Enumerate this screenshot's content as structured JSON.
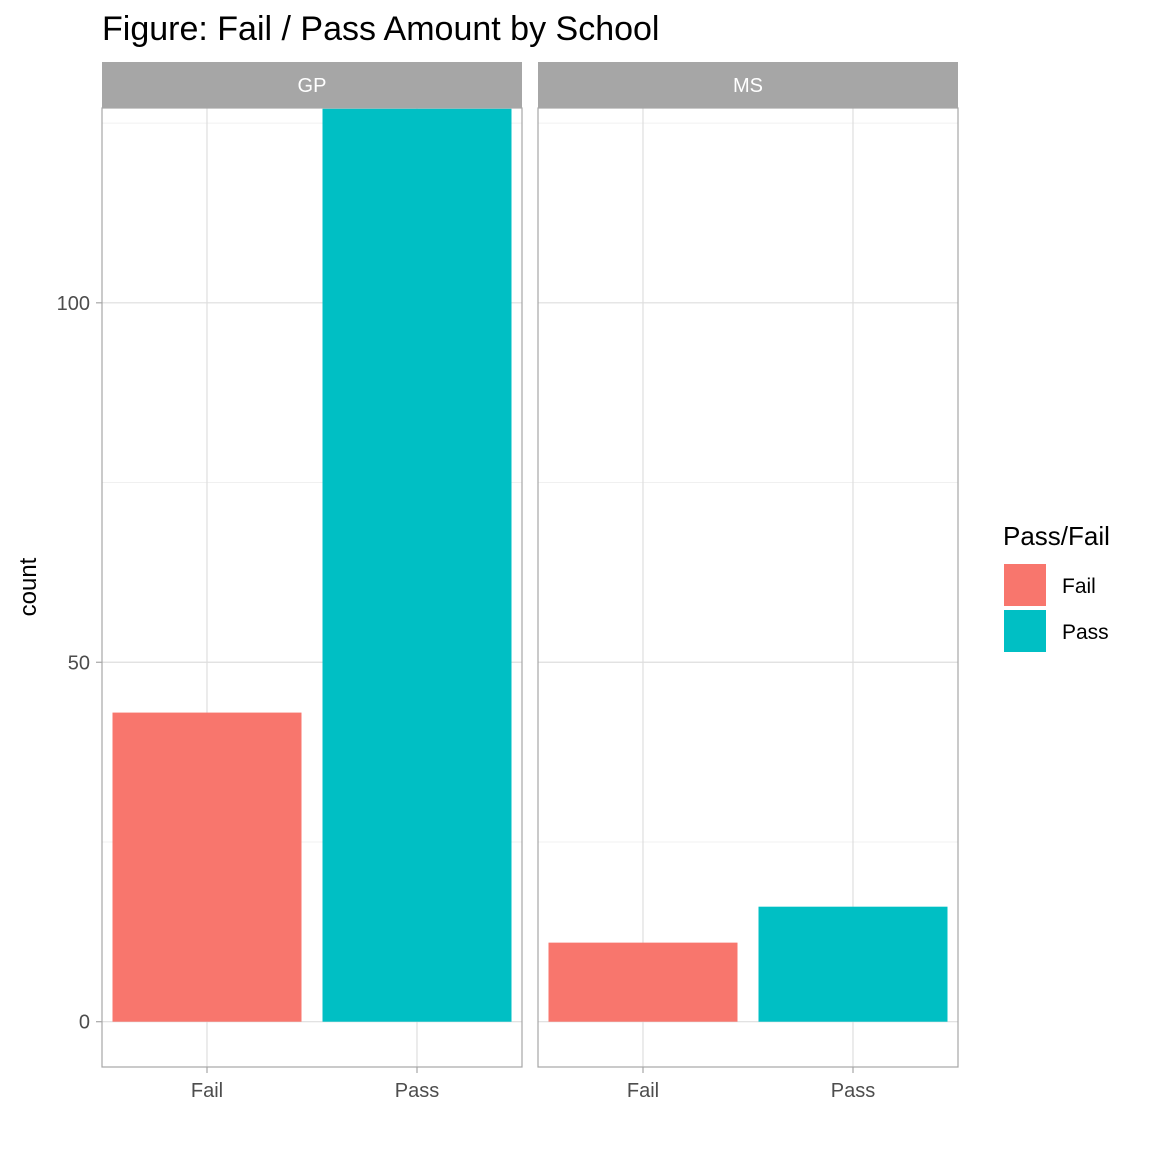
{
  "chart_data": {
    "type": "bar",
    "title": "Figure: Fail / Pass Amount by School",
    "xlabel": "",
    "ylabel": "count",
    "categories": [
      "Fail",
      "Pass"
    ],
    "ylim": [
      -6.3,
      127.1
    ],
    "yticks": [
      0,
      50,
      100
    ],
    "grid": true,
    "panels": [
      {
        "name": "GP",
        "values": [
          43,
          127
        ]
      },
      {
        "name": "MS",
        "values": [
          11,
          16
        ]
      }
    ],
    "legend": {
      "title": "Pass/Fail",
      "placement": "right",
      "entries": [
        {
          "label": "Fail",
          "color": "#F8766D"
        },
        {
          "label": "Pass",
          "color": "#00BFC4"
        }
      ]
    },
    "colors": {
      "Fail": "#F8766D",
      "Pass": "#00BFC4",
      "strip": "#A6A6A6"
    }
  }
}
